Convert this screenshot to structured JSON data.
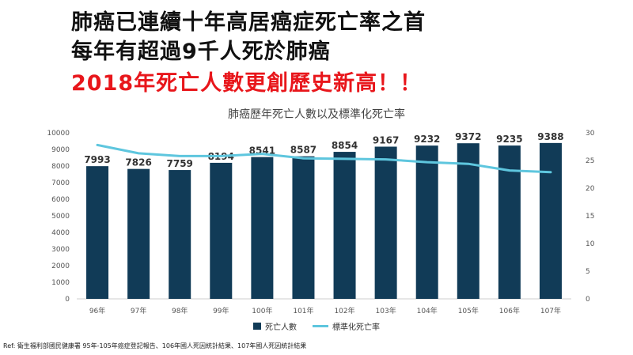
{
  "headline": {
    "line1": "肺癌已連續十年高居癌症死亡率之首",
    "line2": "每年有超過9千人死於肺癌",
    "line3": "2018年死亡人數更創歷史新高！！"
  },
  "colors": {
    "bar": "#113b57",
    "line": "#5ec6de",
    "headline_accent": "#e8161b"
  },
  "chart_data": {
    "type": "bar",
    "title": "肺癌歷年死亡人數以及標準化死亡率",
    "categories": [
      "96年",
      "97年",
      "98年",
      "99年",
      "100年",
      "101年",
      "102年",
      "103年",
      "104年",
      "105年",
      "106年",
      "107年"
    ],
    "series": [
      {
        "name": "死亡人數",
        "type": "bar",
        "axis": "left",
        "values": [
          7993,
          7826,
          7759,
          8194,
          8541,
          8587,
          8854,
          9167,
          9232,
          9372,
          9235,
          9388
        ]
      },
      {
        "name": "標準化死亡率",
        "type": "line",
        "axis": "right",
        "values": [
          27.8,
          26.3,
          25.8,
          25.8,
          26.2,
          25.4,
          25.3,
          25.2,
          24.7,
          24.4,
          23.2,
          22.9
        ]
      }
    ],
    "y_left": {
      "ylim": [
        0,
        10000
      ],
      "ticks": [
        0,
        1000,
        2000,
        3000,
        4000,
        5000,
        6000,
        7000,
        8000,
        9000,
        10000
      ]
    },
    "y_right": {
      "ylim": [
        0,
        30
      ],
      "ticks": [
        0,
        5,
        10,
        15,
        20,
        25,
        30
      ]
    },
    "legend": "bottom",
    "grid": false
  },
  "reference": "Ref: 衛生福利部國民健康署 95年-105年癌症登記報告、106年國人死因統計結果、107年國人死因統計結果"
}
